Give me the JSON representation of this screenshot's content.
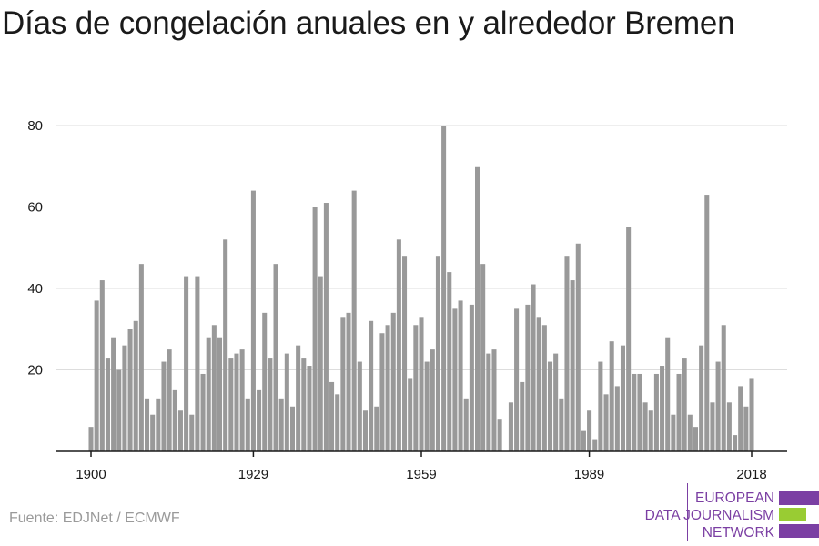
{
  "title": "Días de congelación anuales en y alrededor Bremen",
  "source": "Fuente: EDJNet / ECMWF",
  "logo": {
    "lines": [
      "EUROPEAN",
      "DATA JOURNALISM",
      "NETWORK"
    ],
    "colors": {
      "purple": "#7b3fa3",
      "green": "#99cc33"
    }
  },
  "chart_data": {
    "type": "bar",
    "title": "Días de congelación anuales en y alrededor Bremen",
    "xlabel": "",
    "ylabel": "",
    "x_start": 1900,
    "x_end": 2018,
    "x_ticks": [
      1900,
      1929,
      1959,
      1989,
      2018
    ],
    "y_ticks": [
      20,
      40,
      60,
      80
    ],
    "ylim": [
      0,
      82
    ],
    "grid": true,
    "bar_color": "#999999",
    "values": [
      6,
      37,
      42,
      23,
      28,
      20,
      26,
      30,
      32,
      46,
      13,
      9,
      13,
      22,
      25,
      15,
      10,
      43,
      9,
      43,
      19,
      28,
      31,
      28,
      52,
      23,
      24,
      25,
      13,
      64,
      15,
      34,
      23,
      46,
      13,
      24,
      11,
      26,
      23,
      21,
      60,
      43,
      61,
      17,
      14,
      33,
      34,
      64,
      22,
      10,
      32,
      11,
      29,
      31,
      34,
      52,
      48,
      18,
      31,
      33,
      22,
      25,
      48,
      80,
      44,
      35,
      37,
      13,
      36,
      70,
      46,
      24,
      25,
      8,
      0,
      12,
      35,
      17,
      36,
      41,
      33,
      31,
      22,
      24,
      13,
      48,
      42,
      51,
      5,
      10,
      3,
      22,
      14,
      27,
      16,
      26,
      55,
      19,
      19,
      12,
      10,
      19,
      21,
      28,
      9,
      19,
      23,
      9,
      6,
      26,
      63,
      12,
      22,
      31,
      12,
      4,
      16,
      11,
      18
    ]
  }
}
